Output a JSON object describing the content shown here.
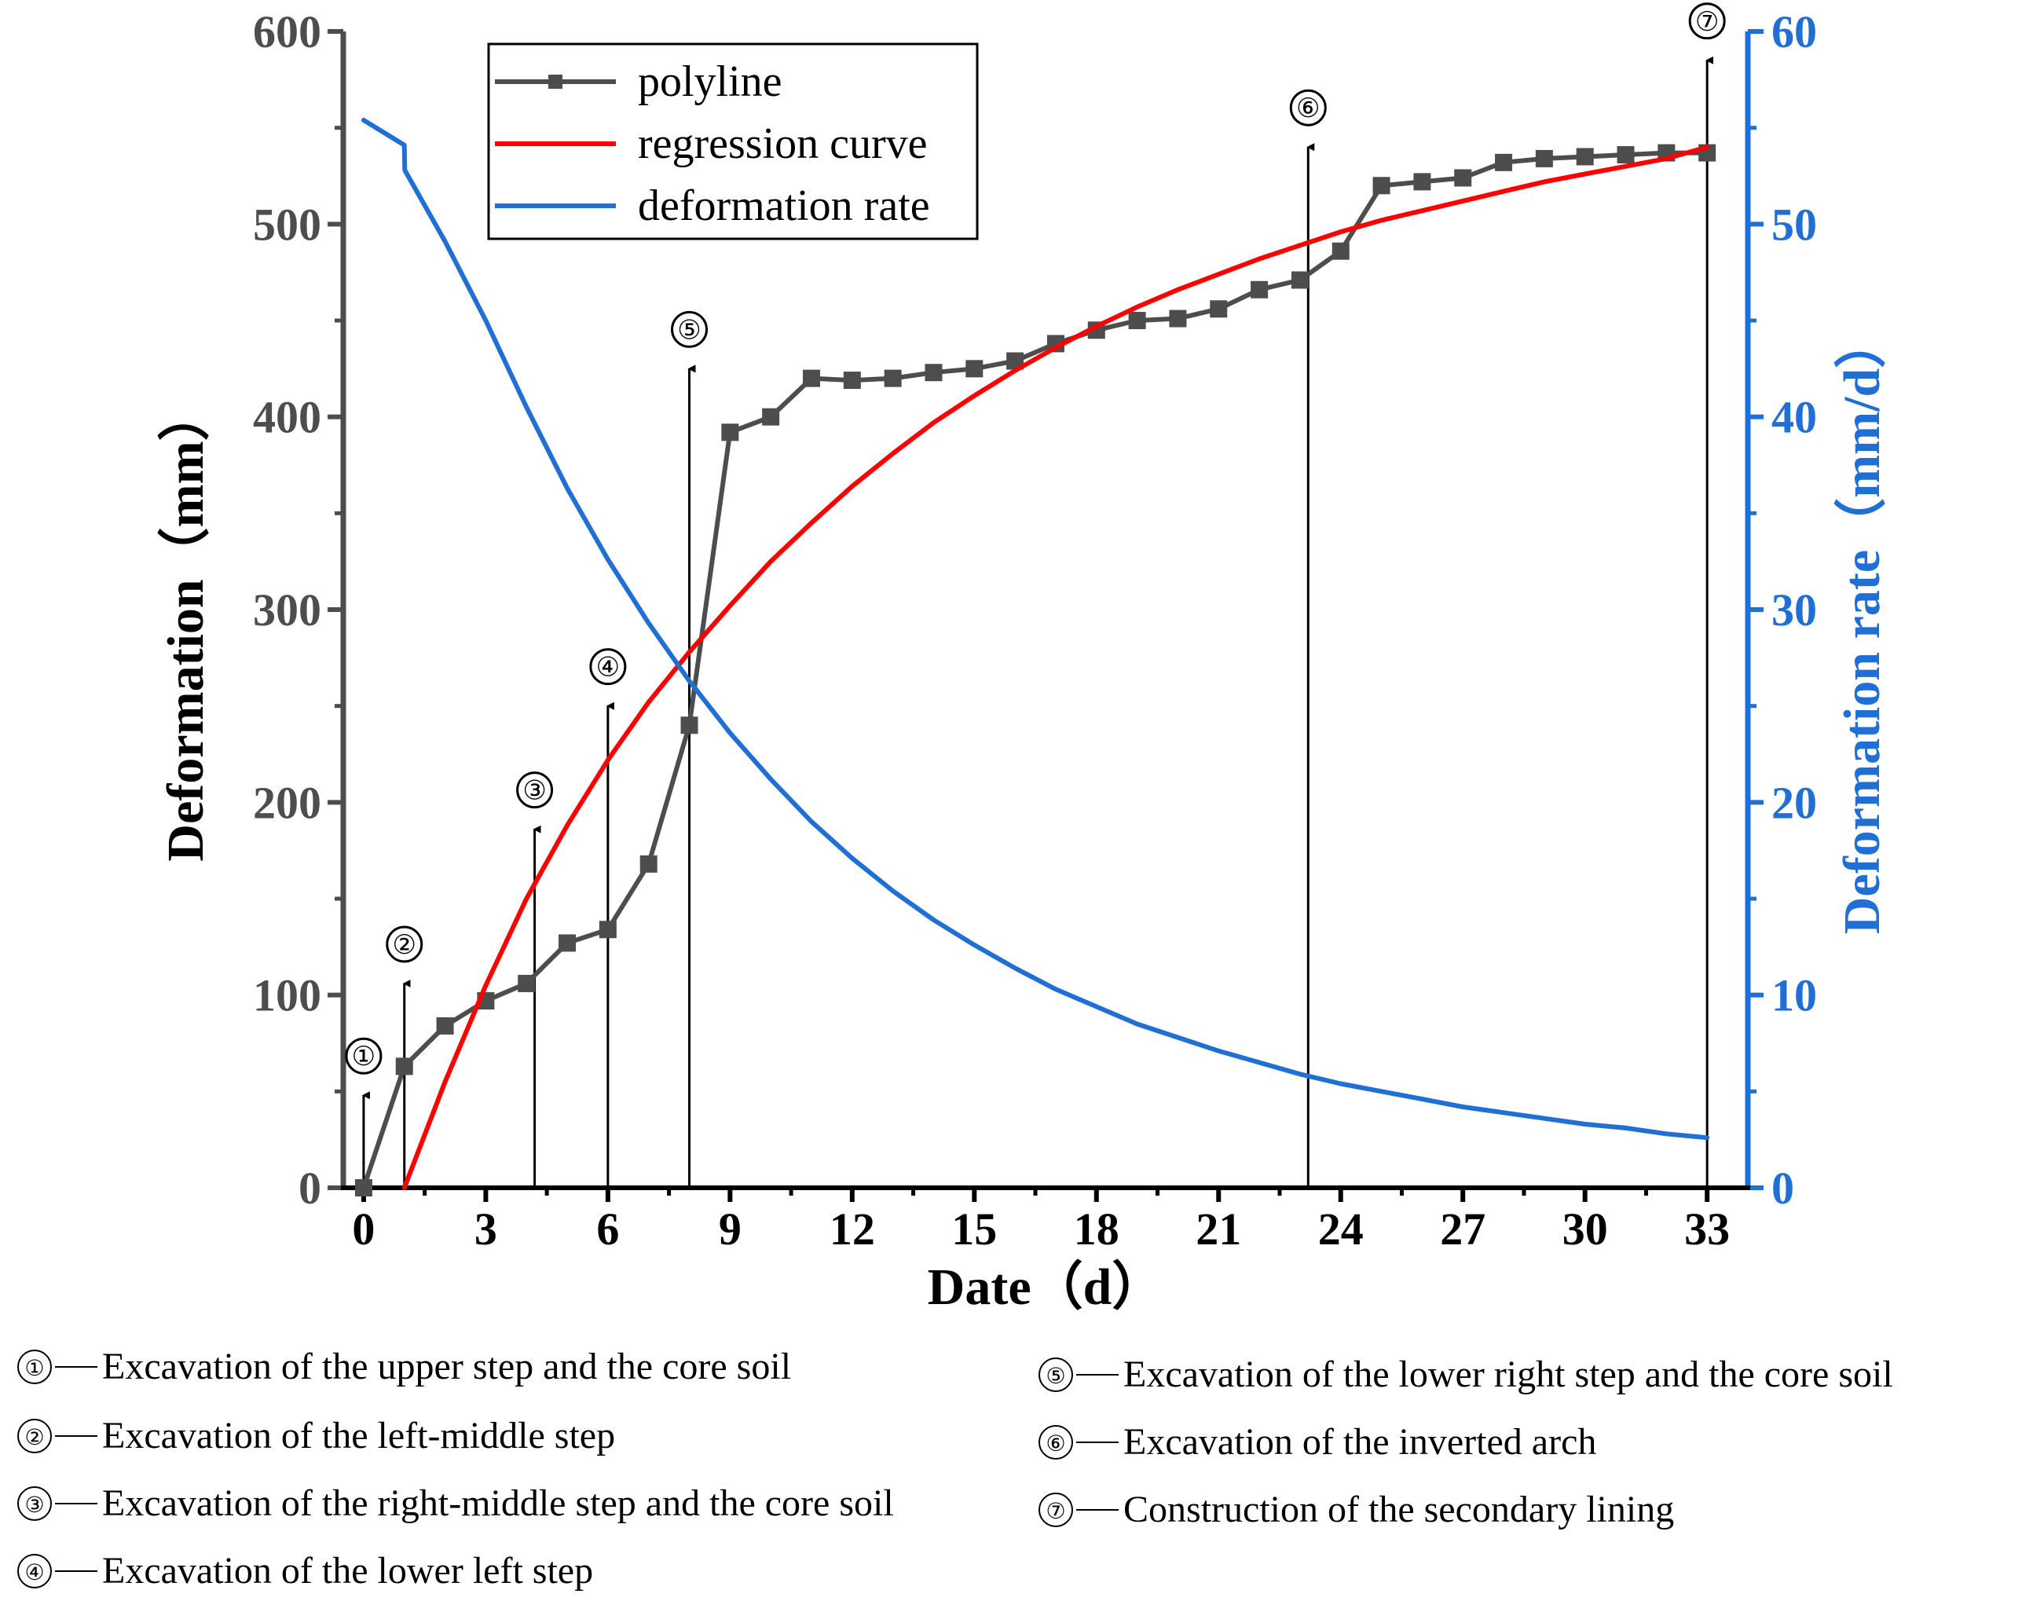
{
  "chart_data": {
    "type": "line",
    "x_label": "Date（d）",
    "y_label_left": "Deformation（mm）",
    "y_label_right": "Deformation rate（mm/d）",
    "x_range": [
      -0.5,
      34
    ],
    "x_ticks": [
      0,
      3,
      6,
      9,
      12,
      15,
      18,
      21,
      24,
      27,
      30,
      33
    ],
    "y_left_range": [
      0,
      600
    ],
    "y_left_ticks": [
      0,
      100,
      200,
      300,
      400,
      500,
      600
    ],
    "y_right_range": [
      0,
      60
    ],
    "y_right_ticks": [
      0,
      10,
      20,
      30,
      40,
      50,
      60
    ],
    "colors": {
      "polyline": "#4d4d4d",
      "regression": "#ff0000",
      "rate": "#1f6fd4",
      "left_axis": "#4d4d4d",
      "right_axis": "#1f6fd4",
      "event": "#000000"
    },
    "legend": [
      {
        "key": "polyline",
        "label": "polyline"
      },
      {
        "key": "regression",
        "label": "regression curve"
      },
      {
        "key": "rate",
        "label": "deformation rate"
      }
    ],
    "series": [
      {
        "name": "polyline",
        "axis": "left",
        "marker": "square",
        "x": [
          0,
          1,
          2,
          3,
          4,
          5,
          6,
          7,
          8,
          9,
          10,
          11,
          12,
          13,
          14,
          15,
          16,
          17,
          18,
          19,
          20,
          21,
          22,
          23,
          24,
          25,
          26,
          27,
          28,
          29,
          30,
          31,
          32,
          33
        ],
        "y": [
          0,
          63,
          84,
          97,
          106,
          127,
          134,
          168,
          240,
          392,
          400,
          420,
          419,
          420,
          423,
          425,
          429,
          438,
          445,
          450,
          451,
          456,
          466,
          471,
          486,
          520,
          522,
          524,
          532,
          534,
          535,
          536,
          537,
          537
        ]
      },
      {
        "name": "regression curve",
        "axis": "left",
        "x": [
          1,
          2,
          3,
          4,
          5,
          6,
          7,
          8,
          9,
          10,
          11,
          12,
          13,
          14,
          15,
          16,
          17,
          18,
          19,
          20,
          21,
          22,
          23,
          24,
          25,
          26,
          27,
          28,
          29,
          30,
          31,
          32,
          33
        ],
        "y": [
          0,
          55,
          105,
          150,
          188,
          222,
          252,
          278,
          302,
          325,
          345,
          364,
          381,
          397,
          411,
          424,
          436,
          447,
          457,
          466,
          474,
          482,
          489,
          496,
          502,
          507,
          512,
          517,
          522,
          526,
          530,
          534,
          540
        ]
      },
      {
        "name": "deformation rate",
        "axis": "right",
        "x": [
          0,
          1,
          1.01,
          2,
          3,
          4,
          5,
          6,
          7,
          8,
          9,
          10,
          11,
          12,
          13,
          14,
          15,
          16,
          17,
          18,
          19,
          20,
          21,
          22,
          23,
          24,
          25,
          26,
          27,
          28,
          29,
          30,
          31,
          32,
          33
        ],
        "y": [
          55.4,
          54.1,
          52.8,
          49.1,
          45,
          40.5,
          36.3,
          32.6,
          29.3,
          26.3,
          23.6,
          21.2,
          19,
          17.1,
          15.4,
          13.9,
          12.6,
          11.4,
          10.3,
          9.4,
          8.5,
          7.8,
          7.1,
          6.5,
          5.9,
          5.4,
          5,
          4.6,
          4.2,
          3.9,
          3.6,
          3.3,
          3.1,
          2.8,
          2.6
        ]
      }
    ],
    "events": [
      {
        "id": "①",
        "x": 0,
        "top": 48
      },
      {
        "id": "②",
        "x": 1,
        "top": 106
      },
      {
        "id": "③",
        "x": 4.2,
        "top": 186
      },
      {
        "id": "④",
        "x": 6,
        "top": 250
      },
      {
        "id": "⑤",
        "x": 8,
        "top": 425
      },
      {
        "id": "⑥",
        "x": 23.2,
        "top": 540
      },
      {
        "id": "⑦",
        "x": 33,
        "top": 585
      }
    ]
  },
  "notes": [
    {
      "num": "①",
      "text": "Excavation of the upper step and the core soil"
    },
    {
      "num": "②",
      "text": "Excavation of the left-middle step"
    },
    {
      "num": "③",
      "text": "Excavation of the right-middle step and the core soil"
    },
    {
      "num": "④",
      "text": "Excavation of the lower left step"
    },
    {
      "num": "⑤",
      "text": "Excavation of the lower right step and the core soil"
    },
    {
      "num": "⑥",
      "text": "Excavation of the inverted arch"
    },
    {
      "num": "⑦",
      "text": "Construction of the secondary lining"
    }
  ]
}
